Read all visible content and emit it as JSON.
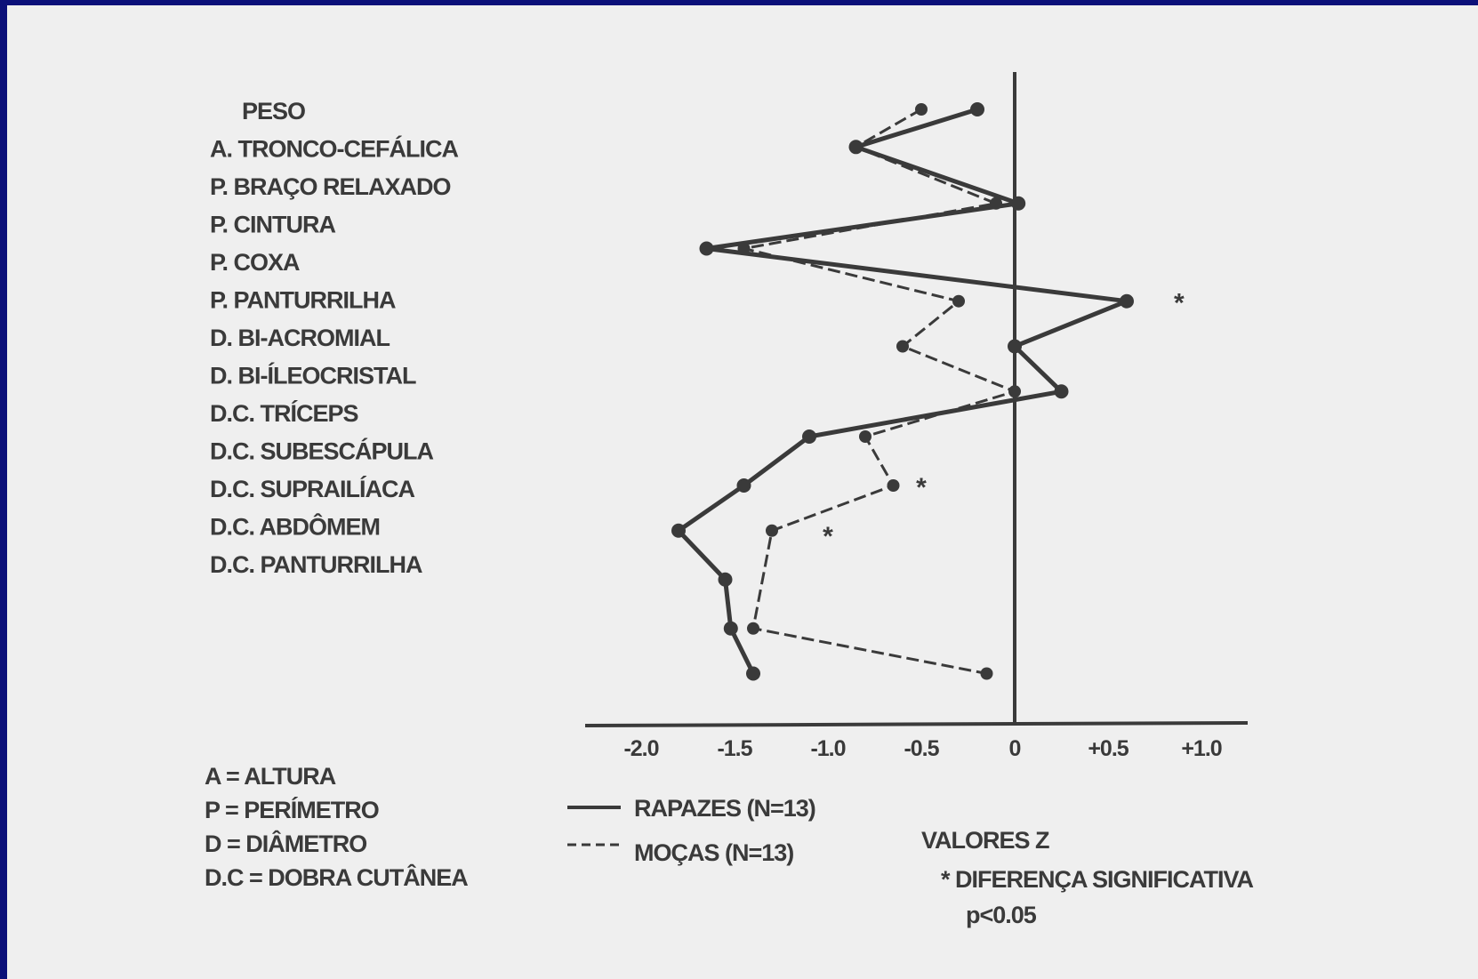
{
  "colors": {
    "frame": "#0b1079",
    "paper": "#efefef",
    "ink": "#3a3a3a"
  },
  "chart_data": {
    "type": "line",
    "orientation": "horizontal-profile",
    "categories": [
      "PESO",
      "A. TRONCO-CEFÁLICA",
      "P. BRAÇO RELAXADO",
      "P. CINTURA",
      "P. COXA",
      "P. PANTURRILHA",
      "D. BI-ACROMIAL",
      "D. BI-ÍLEOCRISTAL",
      "D.C. TRÍCEPS",
      "D.C. SUBESCÁPULA",
      "D.C. SUPRAILÍACA",
      "D.C. ABDÔMEM",
      "D.C. PANTURRILHA"
    ],
    "x_ticks": [
      "-2.0",
      "-1.5",
      "-1.0",
      "-0.5",
      "0",
      "+0.5",
      "+1.0"
    ],
    "xlim": [
      -2.2,
      1.25
    ],
    "series": [
      {
        "name": "RAPAZES (N=13)",
        "style": "solid",
        "points": [
          {
            "value": -0.2,
            "level": 0
          },
          {
            "value": -0.85,
            "level": 1
          },
          {
            "value": 0.02,
            "level": 2.5
          },
          {
            "value": -1.65,
            "level": 3.7
          },
          {
            "value": 0.6,
            "level": 5.1
          },
          {
            "value": 0.0,
            "level": 6.3
          },
          {
            "value": 0.25,
            "level": 7.5
          },
          {
            "value": -1.1,
            "level": 8.7
          },
          {
            "value": -1.45,
            "level": 10
          },
          {
            "value": -1.8,
            "level": 11.2
          },
          {
            "value": -1.55,
            "level": 12.5
          },
          {
            "value": -1.52,
            "level": 13.8
          },
          {
            "value": -1.4,
            "level": 15
          }
        ]
      },
      {
        "name": "MOÇAS (N=13)",
        "style": "dashed",
        "points": [
          {
            "value": -0.5,
            "level": 0
          },
          {
            "value": -0.85,
            "level": 1
          },
          {
            "value": -0.1,
            "level": 2.5
          },
          {
            "value": -1.45,
            "level": 3.7
          },
          {
            "value": -0.3,
            "level": 5.1
          },
          {
            "value": -0.6,
            "level": 6.3
          },
          {
            "value": 0.0,
            "level": 7.5
          },
          {
            "value": -0.8,
            "level": 8.7
          },
          {
            "value": -0.65,
            "level": 10
          },
          {
            "value": -1.3,
            "level": 11.2
          },
          {
            "value": -1.4,
            "level": 13.8
          },
          {
            "value": -0.15,
            "level": 15
          }
        ]
      }
    ],
    "significance_marks": [
      {
        "symbol": "*",
        "value": 0.88,
        "level": 5.1
      },
      {
        "symbol": "*",
        "value": -0.5,
        "level": 10
      },
      {
        "symbol": "*",
        "value": -1.0,
        "level": 11.3
      }
    ],
    "abbreviations": [
      "A = ALTURA",
      "P = PERÍMETRO",
      "D = DIÂMETRO",
      "D.C = DOBRA CUTÂNEA"
    ],
    "legend": [
      "RAPAZES (N=13)",
      "MOÇAS (N=13)"
    ],
    "xlabel": "VALORES Z",
    "note": "* DIFERENÇA SIGNIFICATIVA",
    "note_p": "p<0.05"
  }
}
